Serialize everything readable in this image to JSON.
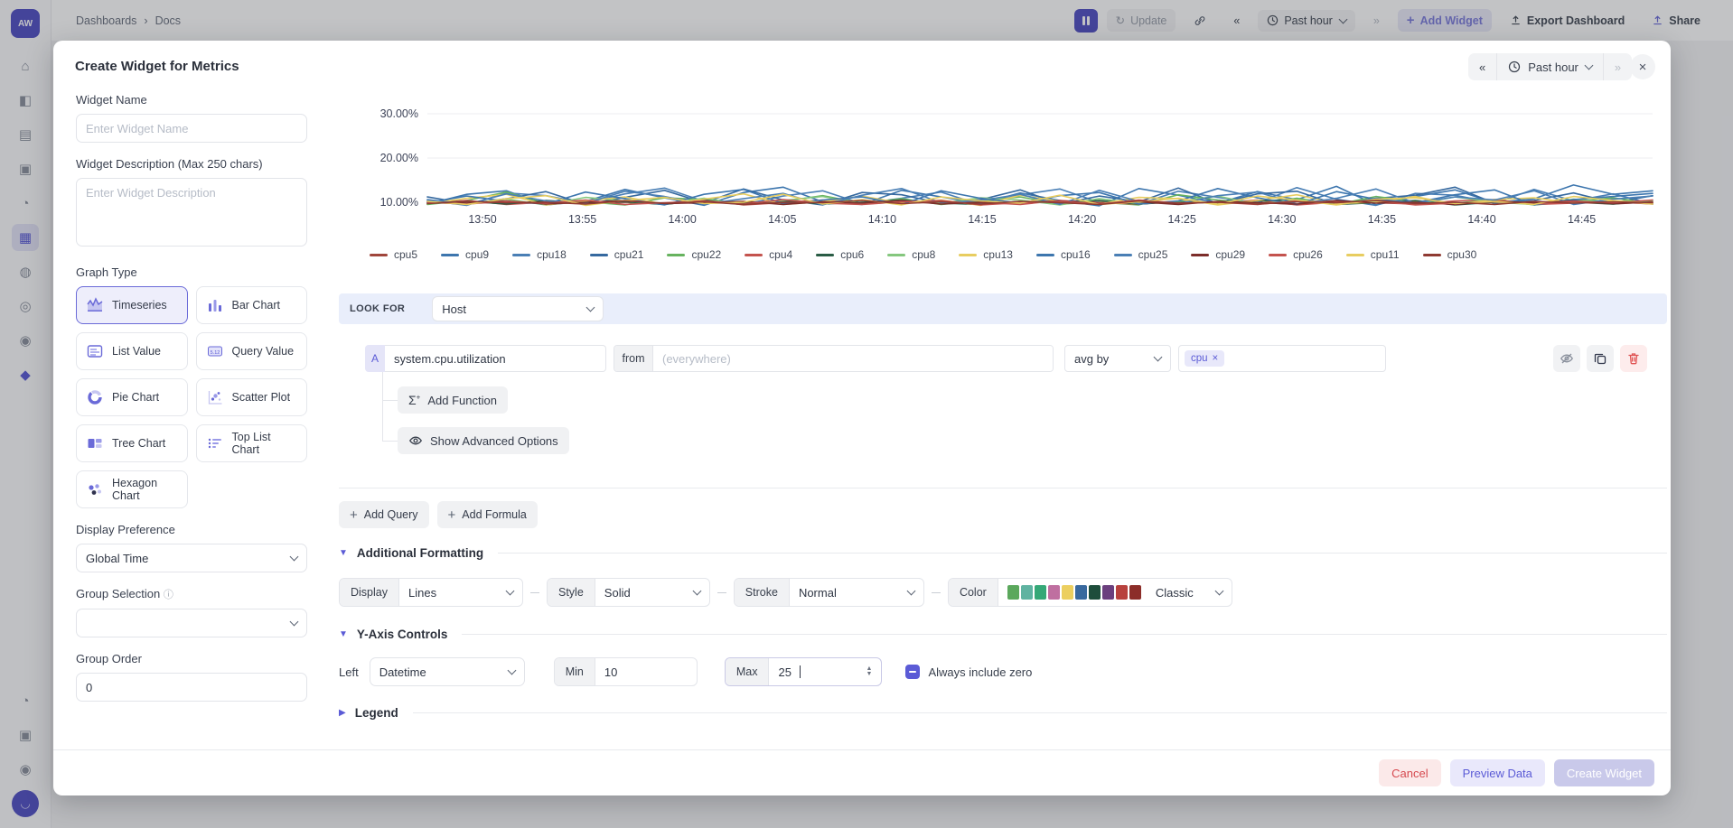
{
  "topbar": {
    "breadcrumb": [
      "Dashboards",
      "Docs"
    ],
    "breadcrumb_sep": "›",
    "logo": "AW",
    "update": "Update",
    "time_range": "Past hour",
    "add_widget": "Add Widget",
    "export": "Export Dashboard",
    "share": "Share"
  },
  "sidebar": {
    "icons": [
      {
        "name": "home-icon",
        "glyph": "⌂"
      },
      {
        "name": "metrics-icon",
        "glyph": "◧"
      },
      {
        "name": "logs-icon",
        "glyph": "▤"
      },
      {
        "name": "docs-icon",
        "glyph": "▣"
      },
      {
        "name": "traces-icon",
        "glyph": "◔"
      },
      {
        "name": "dashboards-icon",
        "glyph": "▦",
        "active": true
      },
      {
        "name": "alerts-icon",
        "glyph": "◍"
      },
      {
        "name": "monitors-icon",
        "glyph": "◎"
      },
      {
        "name": "services-icon",
        "glyph": "◉"
      },
      {
        "name": "integrations-icon",
        "glyph": "◆",
        "accent": true
      }
    ],
    "bottom_icons": [
      {
        "name": "help-icon",
        "glyph": "◔"
      },
      {
        "name": "package-icon",
        "glyph": "▣"
      },
      {
        "name": "settings-gear-icon",
        "glyph": "◉"
      }
    ],
    "avatar_glyph": "◡"
  },
  "modal": {
    "title": "Create Widget for Metrics",
    "time_nav": {
      "prev": "«",
      "range": "Past hour",
      "next": "»",
      "close": "×"
    },
    "form": {
      "widget_name_label": "Widget Name",
      "widget_name_placeholder": "Enter Widget Name",
      "widget_desc_label": "Widget Description (Max 250 chars)",
      "widget_desc_placeholder": "Enter Widget Description",
      "graph_type_label": "Graph Type",
      "graph_types": [
        {
          "label": "Timeseries",
          "icon": "timeseries-icon",
          "selected": true
        },
        {
          "label": "Bar Chart",
          "icon": "bar-chart-icon",
          "selected": false
        },
        {
          "label": "List Value",
          "icon": "list-value-icon",
          "selected": false
        },
        {
          "label": "Query Value",
          "icon": "query-value-icon",
          "selected": false
        },
        {
          "label": "Pie Chart",
          "icon": "pie-chart-icon",
          "selected": false
        },
        {
          "label": "Scatter Plot",
          "icon": "scatter-plot-icon",
          "selected": false
        },
        {
          "label": "Tree Chart",
          "icon": "tree-chart-icon",
          "selected": false
        },
        {
          "label": "Top List Chart",
          "icon": "top-list-icon",
          "selected": false
        },
        {
          "label": "Hexagon Chart",
          "icon": "hexagon-icon",
          "selected": false
        }
      ],
      "display_pref_label": "Display Preference",
      "display_pref_value": "Global Time",
      "group_selection_label": "Group Selection",
      "group_selection_info": "ⓘ",
      "group_order_label": "Group Order",
      "group_order_value": "0"
    },
    "query": {
      "look_for_label": "LOOK FOR",
      "look_for_value": "Host",
      "row_letter": "A",
      "metric_value": "system.cpu.utilization",
      "from_label": "from",
      "from_placeholder": "(everywhere)",
      "agg_value": "avg by",
      "tag_value": "cpu",
      "tag_remove": "×",
      "add_function": "Add Function",
      "show_advanced": "Show Advanced Options",
      "add_query": "Add Query",
      "add_formula": "Add Formula"
    },
    "formatting": {
      "section_title": "Additional Formatting",
      "display_label": "Display",
      "display_value": "Lines",
      "style_label": "Style",
      "style_value": "Solid",
      "stroke_label": "Stroke",
      "stroke_value": "Normal",
      "color_label": "Color",
      "color_value": "Classic",
      "palette": [
        "#5ba85c",
        "#5fb3a1",
        "#35a877",
        "#bf6fa0",
        "#eccf5f",
        "#39699e",
        "#1e4d3b",
        "#6b3f7e",
        "#b8413d",
        "#8c2d29"
      ]
    },
    "yaxis": {
      "section_title": "Y-Axis Controls",
      "left_label": "Left",
      "scale_value": "Datetime",
      "min_label": "Min",
      "min_value": "10",
      "max_label": "Max",
      "max_value": "25",
      "zero_label": "Always include zero"
    },
    "legend_section_title": "Legend",
    "footer": {
      "cancel": "Cancel",
      "preview": "Preview Data",
      "create": "Create Widget"
    }
  },
  "chart_data": {
    "type": "line",
    "ylabel": "percent",
    "ylim": [
      7,
      34
    ],
    "y_ticks": [
      {
        "label": "30.00%",
        "v": 30
      },
      {
        "label": "20.00%",
        "v": 20
      },
      {
        "label": "10.00%",
        "v": 10
      }
    ],
    "x_ticks": [
      "13:50",
      "13:55",
      "14:00",
      "14:05",
      "14:10",
      "14:15",
      "14:20",
      "14:25",
      "14:30",
      "14:35",
      "14:40",
      "14:45"
    ],
    "legend_position": "bottom",
    "grid": true,
    "series": [
      {
        "name": "cpu5",
        "color": "#a0463c",
        "values": [
          9.9,
          10.1,
          9.7,
          10.3,
          9.8,
          10.0,
          9.6,
          10.2,
          9.9,
          10.4,
          9.7,
          10.0,
          9.8,
          10.2,
          9.6,
          10.0,
          9.9,
          10.3,
          9.7,
          10.1,
          9.8,
          10.0,
          9.5,
          10.2,
          9.9,
          10.1,
          9.7,
          10.3,
          9.8,
          10.0,
          9.6,
          10.1
        ]
      },
      {
        "name": "cpu9",
        "color": "#3d76ae",
        "values": [
          9.6,
          11.8,
          12.6,
          9.4,
          10.2,
          12.9,
          11.0,
          9.3,
          12.2,
          13.4,
          10.1,
          9.5,
          12.7,
          11.2,
          9.7,
          12.1,
          10.4,
          9.2,
          13.1,
          11.6,
          9.8,
          12.4,
          10.6,
          13.6,
          9.4,
          11.3,
          12.8,
          9.9,
          10.8,
          13.9,
          11.8,
          12.6
        ]
      },
      {
        "name": "cpu18",
        "color": "#4a7fb5",
        "values": [
          10.4,
          9.3,
          12.1,
          11.5,
          9.8,
          11.9,
          13.2,
          10.2,
          9.5,
          11.4,
          12.6,
          9.7,
          10.9,
          12.3,
          9.4,
          11.7,
          13.0,
          10.0,
          9.6,
          12.5,
          11.1,
          9.9,
          13.3,
          10.7,
          9.3,
          12.0,
          11.6,
          9.8,
          12.9,
          10.3,
          11.9,
          9.6
        ]
      },
      {
        "name": "cpu21",
        "color": "#36699f",
        "values": [
          11.2,
          9.7,
          10.8,
          12.4,
          9.5,
          11.1,
          12.7,
          9.9,
          13.0,
          10.5,
          9.4,
          12.2,
          11.7,
          9.8,
          10.6,
          12.8,
          9.6,
          11.4,
          10.1,
          13.2,
          9.7,
          11.9,
          12.5,
          9.5,
          10.9,
          11.6,
          13.4,
          9.8,
          10.4,
          12.1,
          9.9,
          11.5
        ]
      },
      {
        "name": "cpu22",
        "color": "#67b35f",
        "values": [
          9.5,
          10.4,
          12.3,
          9.7,
          10.1,
          9.4,
          11.0,
          10.6,
          9.6,
          10.2,
          11.5,
          9.8,
          10.8,
          9.5,
          10.3,
          11.2,
          9.6,
          10.0,
          9.4,
          11.7,
          10.5,
          9.7,
          10.9,
          9.5,
          11.3,
          10.2,
          9.8,
          10.6,
          9.4,
          10.1,
          11.0,
          9.7
        ]
      },
      {
        "name": "cpu4",
        "color": "#c4534e",
        "values": [
          9.8,
          10.4,
          9.5,
          10.0,
          9.9,
          10.2,
          9.6,
          10.7,
          9.4,
          9.9,
          10.5,
          9.6,
          10.1,
          9.8,
          10.0,
          9.5,
          10.4,
          9.9,
          9.6,
          10.2,
          9.8,
          10.5,
          9.4,
          10.0,
          9.9,
          9.6,
          10.3,
          10.6,
          9.5,
          9.8,
          10.1,
          9.6
        ]
      },
      {
        "name": "cpu6",
        "color": "#2a5c45",
        "values": [
          9.8,
          10.2,
          9.6,
          10.4,
          9.9,
          10.1,
          9.5,
          10.6,
          9.7,
          10.3,
          9.6,
          10.0,
          10.5,
          9.8,
          9.5,
          10.2,
          9.9,
          10.4,
          9.6,
          10.1,
          9.8,
          10.3,
          10.6,
          9.5,
          9.9,
          10.4,
          9.4,
          10.0,
          9.8,
          10.2,
          9.6,
          10.4
        ]
      },
      {
        "name": "cpu8",
        "color": "#85c77e",
        "values": [
          10.0,
          9.6,
          10.7,
          9.4,
          11.1,
          10.3,
          9.7,
          10.9,
          9.5,
          10.4,
          11.3,
          9.6,
          10.1,
          9.8,
          11.0,
          10.5,
          9.4,
          10.8,
          9.7,
          10.2,
          11.4,
          9.5,
          10.6,
          9.8,
          10.3,
          9.6,
          11.2,
          10.0,
          9.5,
          10.7,
          9.9,
          10.4
        ]
      },
      {
        "name": "cpu13",
        "color": "#e8cd60",
        "values": [
          9.7,
          10.9,
          11.8,
          9.4,
          10.3,
          11.2,
          9.6,
          10.7,
          11.9,
          9.5,
          10.1,
          11.4,
          9.8,
          10.5,
          9.3,
          11.6,
          10.2,
          9.6,
          11.1,
          10.8,
          9.4,
          10.4,
          11.7,
          9.7,
          10.0,
          11.3,
          9.5,
          10.6,
          11.0,
          9.8,
          10.3,
          9.6
        ]
      },
      {
        "name": "cpu16",
        "color": "#3d76ae",
        "values": [
          9.9,
          11.4,
          10.2,
          9.6,
          12.3,
          10.8,
          9.4,
          11.8,
          12.9,
          9.7,
          10.5,
          11.2,
          9.5,
          12.6,
          10.9,
          9.8,
          11.5,
          12.2,
          9.6,
          10.3,
          13.1,
          11.0,
          9.5,
          12.4,
          10.7,
          9.9,
          11.7,
          12.8,
          9.4,
          10.6,
          11.3,
          12.0
        ]
      },
      {
        "name": "cpu25",
        "color": "#4a7fb5",
        "values": [
          10.6,
          9.5,
          11.9,
          10.3,
          9.8,
          12.5,
          11.3,
          9.6,
          10.8,
          12.0,
          9.4,
          11.6,
          13.1,
          9.9,
          10.4,
          11.8,
          9.5,
          12.7,
          10.2,
          9.7,
          11.5,
          12.3,
          9.6,
          10.9,
          13.0,
          9.8,
          11.2,
          10.5,
          12.6,
          9.5,
          10.7,
          11.4
        ]
      },
      {
        "name": "cpu29",
        "color": "#7c2d2a",
        "values": [
          10.1,
          9.8,
          10.3,
          9.6,
          10.0,
          10.4,
          9.7,
          9.9,
          10.2,
          9.5,
          10.1,
          9.8,
          10.4,
          9.6,
          10.0,
          9.9,
          10.3,
          9.7,
          10.1,
          9.5,
          10.2,
          9.9,
          9.6,
          10.4,
          9.8,
          10.0,
          9.5,
          10.2,
          9.9,
          10.3,
          9.7,
          10.0
        ]
      },
      {
        "name": "cpu26",
        "color": "#c4534e",
        "values": [
          10.0,
          9.6,
          10.2,
          9.8,
          10.5,
          9.5,
          9.9,
          10.3,
          9.6,
          10.6,
          9.8,
          9.5,
          10.1,
          10.4,
          9.4,
          9.9,
          10.2,
          9.6,
          10.5,
          9.8,
          10.0,
          9.5,
          10.3,
          9.9,
          10.4,
          9.4,
          9.8,
          10.1,
          9.6,
          10.2,
          9.9,
          10.5
        ]
      },
      {
        "name": "cpu11",
        "color": "#e8cd60",
        "values": [
          10.2,
          9.5,
          10.8,
          11.5,
          9.3,
          10.4,
          11.1,
          9.7,
          10.0,
          11.8,
          9.6,
          10.6,
          9.4,
          11.2,
          10.3,
          9.8,
          11.6,
          9.5,
          10.1,
          10.9,
          9.6,
          11.4,
          10.5,
          9.4,
          10.7,
          11.0,
          9.7,
          10.2,
          9.5,
          11.3,
          10.4,
          9.8
        ]
      },
      {
        "name": "cpu30",
        "color": "#8f3a32",
        "values": [
          9.7,
          10.2,
          9.9,
          10.0,
          9.6,
          10.3,
          9.8,
          10.1,
          9.5,
          10.0,
          9.9,
          10.4,
          9.7,
          10.1,
          9.6,
          10.2,
          9.9,
          9.5,
          10.3,
          9.8,
          10.0,
          9.6,
          10.1,
          9.9,
          10.4,
          9.7,
          10.0,
          9.5,
          10.2,
          9.8,
          10.1,
          9.9
        ]
      }
    ]
  }
}
